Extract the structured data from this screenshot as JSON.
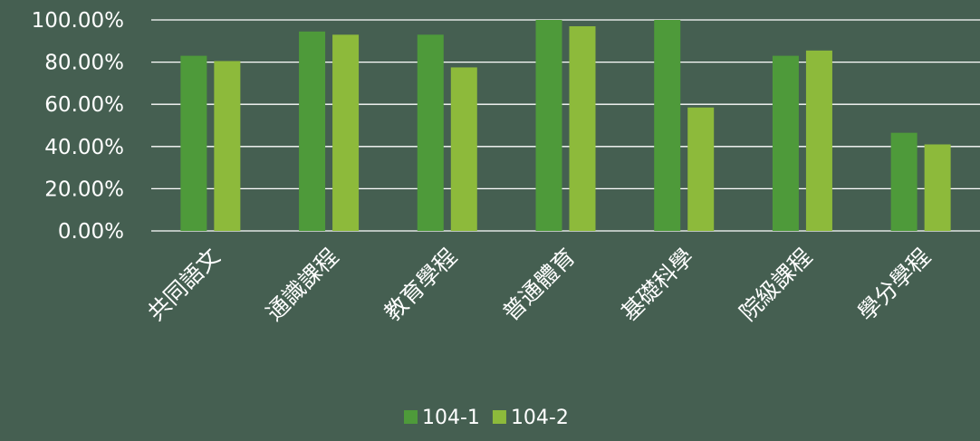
{
  "chart_data": {
    "type": "bar",
    "title": "",
    "xlabel": "",
    "ylabel": "",
    "categories": [
      "共同語文",
      "通識課程",
      "教育學程",
      "普通體育",
      "基礎科學",
      "院級課程",
      "學分學程"
    ],
    "series": [
      {
        "name": "104-1",
        "color": "#4e9a3a",
        "values": [
          83,
          94.5,
          93,
          100,
          100,
          83,
          46.5
        ]
      },
      {
        "name": "104-2",
        "color": "#8dba3b",
        "values": [
          80.5,
          93,
          77.5,
          97,
          58.5,
          85.5,
          41
        ]
      }
    ],
    "ylim": [
      0,
      100
    ],
    "yticks": [
      "0.00%",
      "20.00%",
      "40.00%",
      "60.00%",
      "80.00%",
      "100.00%"
    ],
    "grid": true,
    "legend_position": "bottom",
    "colors": {
      "background": "#455f51",
      "text": "#ffffff",
      "grid": "#ffffff"
    }
  }
}
